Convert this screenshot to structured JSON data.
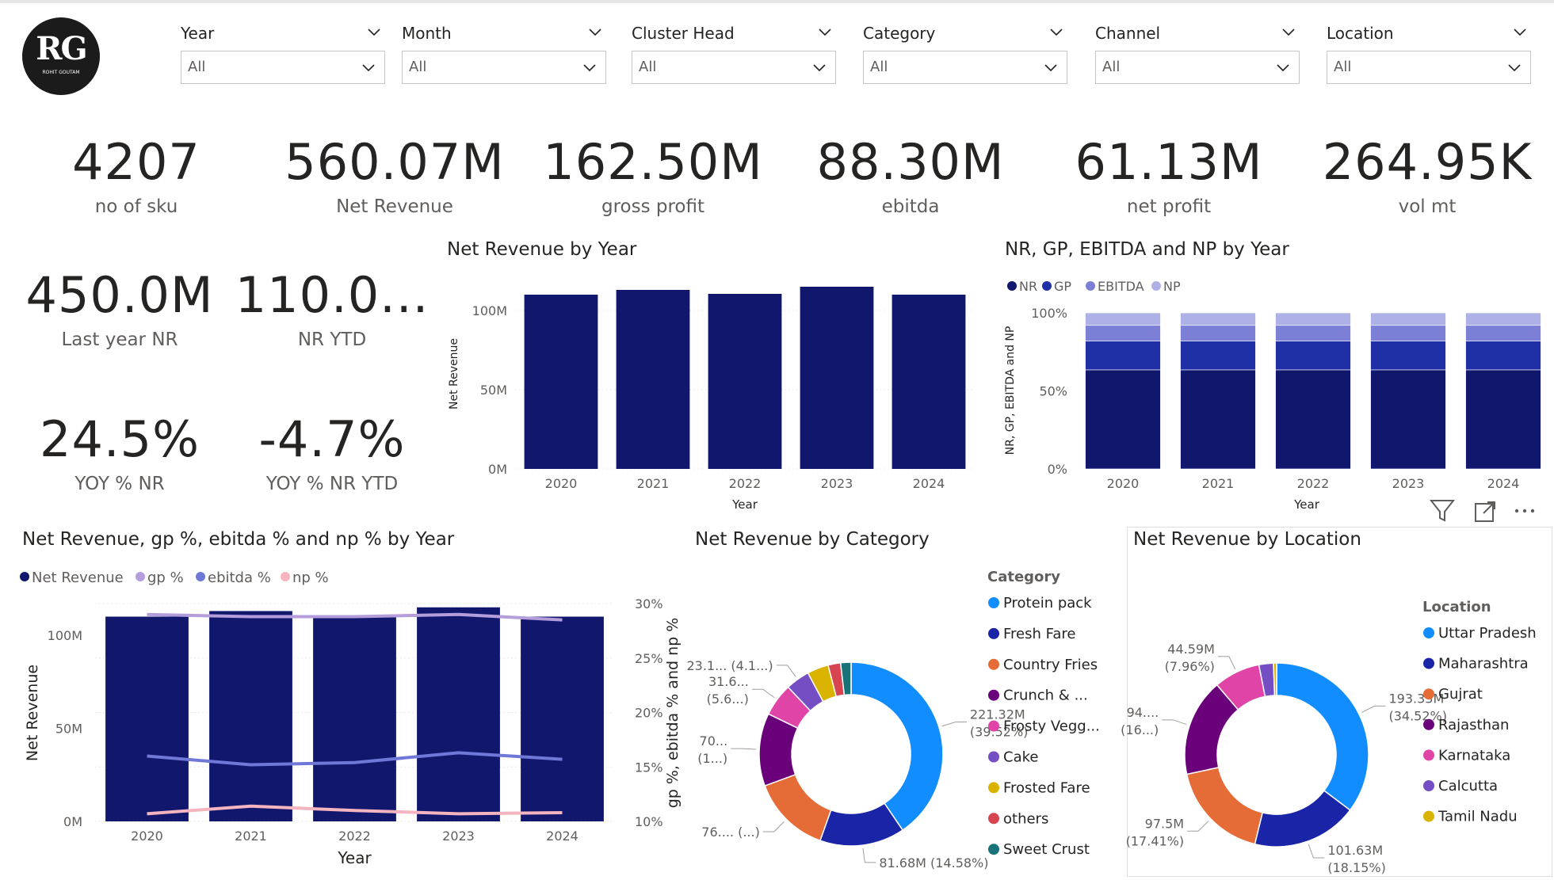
{
  "logo": {
    "text": "RG",
    "subtext": "ROHIT GOUTAM"
  },
  "slicers": [
    {
      "title": "Year",
      "value": "All"
    },
    {
      "title": "Month",
      "value": "All"
    },
    {
      "title": "Cluster Head",
      "value": "All"
    },
    {
      "title": "Category",
      "value": "All"
    },
    {
      "title": "Channel",
      "value": "All"
    },
    {
      "title": "Location",
      "value": "All"
    }
  ],
  "kpis": [
    {
      "value": "4207",
      "label": "no of sku"
    },
    {
      "value": "560.07M",
      "label": "Net Revenue"
    },
    {
      "value": "162.50M",
      "label": "gross profit"
    },
    {
      "value": "88.30M",
      "label": "ebitda"
    },
    {
      "value": "61.13M",
      "label": "net profit"
    },
    {
      "value": "264.95K",
      "label": "vol mt"
    }
  ],
  "kpis2": [
    {
      "value": "450.0M",
      "label": "Last year NR"
    },
    {
      "value": "110.0...",
      "label": "NR YTD"
    },
    {
      "value": "24.5%",
      "label": "YOY % NR"
    },
    {
      "value": "-4.7%",
      "label": "YOY % NR YTD"
    }
  ],
  "chart_data": [
    {
      "id": "nr_by_year",
      "type": "bar",
      "title": "Net Revenue by Year",
      "xlabel": "Year",
      "ylabel": "Net Revenue",
      "categories": [
        "2020",
        "2021",
        "2022",
        "2023",
        "2024"
      ],
      "values": [
        110,
        113,
        110.5,
        115,
        110
      ],
      "ylim": [
        0,
        120
      ],
      "yticks": [
        "0M",
        "50M",
        "100M"
      ],
      "color": "#12176e"
    },
    {
      "id": "nr_gp_ebitda_np",
      "type": "bar",
      "stacked": "percent",
      "title": "NR, GP, EBITDA and NP by Year",
      "xlabel": "Year",
      "ylabel": "NR, GP, EBITDA and NP",
      "categories": [
        "2020",
        "2021",
        "2022",
        "2023",
        "2024"
      ],
      "yticks": [
        "0%",
        "50%",
        "100%"
      ],
      "series": [
        {
          "name": "NR",
          "values": [
            63.5,
            63.5,
            63.5,
            63.5,
            63.5
          ],
          "color": "#12176e"
        },
        {
          "name": "GP",
          "values": [
            18.5,
            18.5,
            18.5,
            18.5,
            18.5
          ],
          "color": "#1f2fa6"
        },
        {
          "name": "EBITDA",
          "values": [
            10,
            10,
            10,
            10,
            10
          ],
          "color": "#7b80d6"
        },
        {
          "name": "NP",
          "values": [
            8,
            8,
            8,
            8,
            8
          ],
          "color": "#aeb1e6"
        }
      ]
    },
    {
      "id": "combo",
      "type": "bar",
      "title": "Net Revenue, gp %, ebitda % and np % by Year",
      "xlabel": "Year",
      "ylabel": "Net Revenue",
      "y2label": "gp %, ebitda % and np %",
      "categories": [
        "2020",
        "2021",
        "2022",
        "2023",
        "2024"
      ],
      "bar_series": {
        "name": "Net Revenue",
        "values": [
          110,
          113,
          110.5,
          115,
          110
        ],
        "color": "#12176e"
      },
      "ylim": [
        0,
        120
      ],
      "yticks": [
        "0M",
        "50M",
        "100M"
      ],
      "y2lim": [
        10,
        30
      ],
      "y2ticks": [
        "10%",
        "15%",
        "20%",
        "25%",
        "30%"
      ],
      "line_series": [
        {
          "name": "gp %",
          "values": [
            29.0,
            28.8,
            28.8,
            29.0,
            28.5
          ],
          "color": "#b39ddb"
        },
        {
          "name": "ebitda %",
          "values": [
            16.0,
            15.2,
            15.4,
            16.3,
            15.7
          ],
          "color": "#6f78d6"
        },
        {
          "name": "np %",
          "values": [
            10.7,
            11.4,
            11.0,
            10.7,
            10.8
          ],
          "color": "#f4b4c0"
        }
      ]
    },
    {
      "id": "nr_by_category",
      "type": "pie",
      "donut": true,
      "title": "Net Revenue by Category",
      "legend_title": "Category",
      "series": [
        {
          "name": "Protein pack",
          "value": 221.32,
          "color": "#118dff"
        },
        {
          "name": "Fresh Fare",
          "value": 81.68,
          "color": "#1a24a6"
        },
        {
          "name": "Country Fries",
          "value": 76.0,
          "color": "#e66c37"
        },
        {
          "name": "Crunch & ...",
          "value": 70.0,
          "color": "#6b007b"
        },
        {
          "name": "Frosty Vegg...",
          "value": 31.6,
          "color": "#e044a7"
        },
        {
          "name": "Cake",
          "value": 23.1,
          "color": "#744ec2"
        },
        {
          "name": "Frosted Fare",
          "value": 20.5,
          "color": "#d9b300"
        },
        {
          "name": "others",
          "value": 12.0,
          "color": "#d64550"
        },
        {
          "name": "Sweet Crust",
          "value": 10.0,
          "color": "#197278"
        }
      ],
      "labels": [
        {
          "line1": "221.32M",
          "line2": "(39.52%)"
        },
        {
          "line1": "81.68M (14.58%)",
          "line2": ""
        },
        {
          "line1": "76.... (...)",
          "line2": ""
        },
        {
          "line1": "70...",
          "line2": "(1...)"
        },
        {
          "line1": "31.6...",
          "line2": "(5.6...)"
        },
        {
          "line1": "23.1... (4.1...)",
          "line2": ""
        }
      ]
    },
    {
      "id": "nr_by_location",
      "type": "pie",
      "donut": true,
      "title": "Net Revenue by Location",
      "legend_title": "Location",
      "series": [
        {
          "name": "Uttar Pradesh",
          "value": 193.33,
          "color": "#118dff"
        },
        {
          "name": "Maharashtra",
          "value": 101.63,
          "color": "#1a24a6"
        },
        {
          "name": "Gujrat",
          "value": 97.5,
          "color": "#e66c37"
        },
        {
          "name": "Rajasthan",
          "value": 94.0,
          "color": "#6b007b"
        },
        {
          "name": "Karnataka",
          "value": 44.59,
          "color": "#e044a7"
        },
        {
          "name": "Calcutta",
          "value": 14.0,
          "color": "#744ec2"
        },
        {
          "name": "Tamil Nadu",
          "value": 3.0,
          "color": "#d9b300"
        }
      ],
      "labels": [
        {
          "line1": "193.33M",
          "line2": "(34.52%)"
        },
        {
          "line1": "101.63M",
          "line2": "(18.15%)"
        },
        {
          "line1": "97.5M",
          "line2": "(17.41%)"
        },
        {
          "line1": "94....",
          "line2": "(16...)"
        },
        {
          "line1": "44.59M",
          "line2": "(7.96%)"
        }
      ]
    }
  ]
}
